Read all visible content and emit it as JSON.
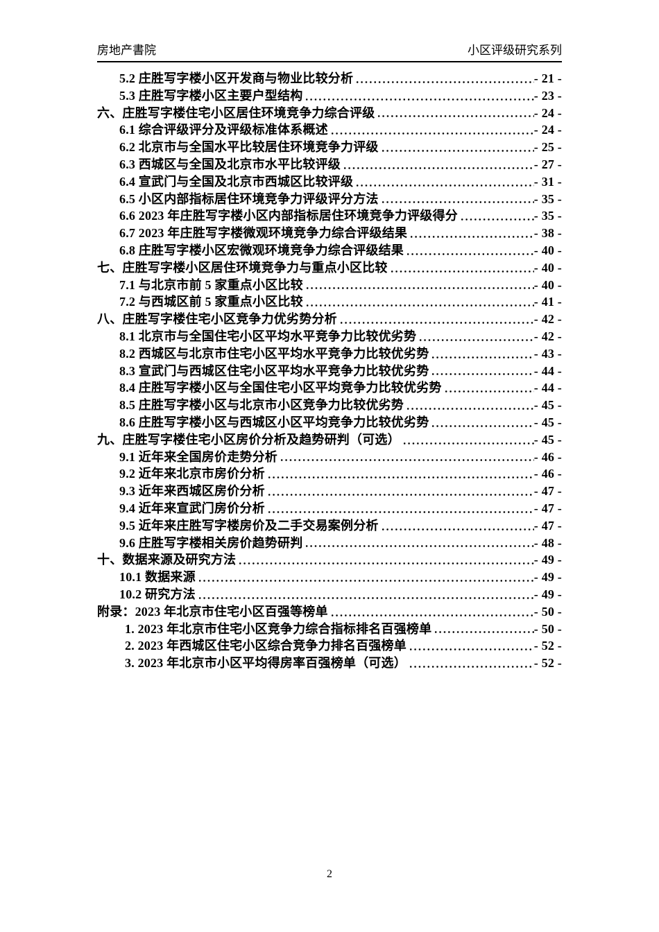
{
  "header": {
    "left": "房地产書院",
    "right": "小区评级研究系列"
  },
  "footer": {
    "page_number": "2"
  },
  "toc": {
    "entries": [
      {
        "level": 2,
        "text": "5.2 庄胜写字楼小区开发商与物业比较分析",
        "page": "- 21 -"
      },
      {
        "level": 2,
        "text": "5.3 庄胜写字楼小区主要户型结构",
        "page": "- 23 -"
      },
      {
        "level": 1,
        "text": "六、庄胜写字楼住宅小区居住环境竞争力综合评级",
        "page": "- 24 -"
      },
      {
        "level": 2,
        "text": "6.1 综合评级评分及评级标准体系概述",
        "page": "- 24 -"
      },
      {
        "level": 2,
        "text": "6.2 北京市与全国水平比较居住环境竞争力评级",
        "page": "- 25 -"
      },
      {
        "level": 2,
        "text": "6.3 西城区与全国及北京市水平比较评级",
        "page": "- 27 -"
      },
      {
        "level": 2,
        "text": "6.4 宣武门与全国及北京市西城区比较评级",
        "page": "- 31 -"
      },
      {
        "level": 2,
        "text": "6.5 小区内部指标居住环境竞争力评级评分方法",
        "page": "- 35 -"
      },
      {
        "level": 2,
        "text": "6.6 2023 年庄胜写字楼小区内部指标居住环境竞争力评级得分",
        "page": "- 35 -"
      },
      {
        "level": 2,
        "text": "6.7 2023 年庄胜写字楼微观环境竞争力综合评级结果",
        "page": "- 38 -"
      },
      {
        "level": 2,
        "text": "6.8 庄胜写字楼小区宏微观环境竞争力综合评级结果",
        "page": "- 40 -"
      },
      {
        "level": 1,
        "text": "七、庄胜写字楼小区居住环境竞争力与重点小区比较",
        "page": "- 40 -"
      },
      {
        "level": 2,
        "text": "7.1 与北京市前 5 家重点小区比较",
        "page": "- 40 -"
      },
      {
        "level": 2,
        "text": "7.2 与西城区前 5 家重点小区比较",
        "page": "- 41 -"
      },
      {
        "level": 1,
        "text": "八、庄胜写字楼住宅小区竞争力优劣势分析",
        "page": "- 42 -"
      },
      {
        "level": 2,
        "text": "8.1 北京市与全国住宅小区平均水平竞争力比较优劣势",
        "page": "- 42 -"
      },
      {
        "level": 2,
        "text": "8.2 西城区与北京市住宅小区平均水平竞争力比较优劣势",
        "page": "- 43 -"
      },
      {
        "level": 2,
        "text": "8.3 宣武门与西城区住宅小区平均水平竞争力比较优劣势",
        "page": "- 44 -"
      },
      {
        "level": 2,
        "text": "8.4 庄胜写字楼小区与全国住宅小区平均竞争力比较优劣势",
        "page": "- 44 -"
      },
      {
        "level": 2,
        "text": "8.5 庄胜写字楼小区与北京市小区竞争力比较优劣势",
        "page": "- 45 -"
      },
      {
        "level": 2,
        "text": "8.6 庄胜写字楼小区与西城区小区平均竞争力比较优劣势",
        "page": "- 45 -"
      },
      {
        "level": 1,
        "text": "九、庄胜写字楼住宅小区房价分析及趋势研判（可选）",
        "page": "- 45 -"
      },
      {
        "level": 2,
        "text": "9.1 近年来全国房价走势分析",
        "page": "- 46 -"
      },
      {
        "level": 2,
        "text": "9.2 近年来北京市房价分析",
        "page": "- 46 -"
      },
      {
        "level": 2,
        "text": "9.3 近年来西城区房价分析",
        "page": "- 47 -"
      },
      {
        "level": 2,
        "text": "9.4 近年来宣武门房价分析",
        "page": "- 47 -"
      },
      {
        "level": 2,
        "text": "9.5 近年来庄胜写字楼房价及二手交易案例分析",
        "page": "- 47 -"
      },
      {
        "level": 2,
        "text": "9.6 庄胜写字楼相关房价趋势研判",
        "page": "- 48 -"
      },
      {
        "level": 1,
        "text": "十、数据来源及研究方法",
        "page": "- 49 -"
      },
      {
        "level": 2,
        "text": "10.1 数据来源",
        "page": "- 49 -"
      },
      {
        "level": 2,
        "text": "10.2 研究方法",
        "page": "- 49 -"
      },
      {
        "level": 1,
        "text": "附录：2023 年北京市住宅小区百强等榜单",
        "page": "- 50 -"
      },
      {
        "level": 3,
        "text": "1. 2023 年北京市住宅小区竞争力综合指标排名百强榜单",
        "page": "- 50 -"
      },
      {
        "level": 3,
        "text": "2. 2023 年西城区住宅小区综合竞争力排名百强榜单",
        "page": "- 52 -"
      },
      {
        "level": 3,
        "text": "3. 2023 年北京市小区平均得房率百强榜单（可选）",
        "page": "- 52 -"
      }
    ]
  }
}
